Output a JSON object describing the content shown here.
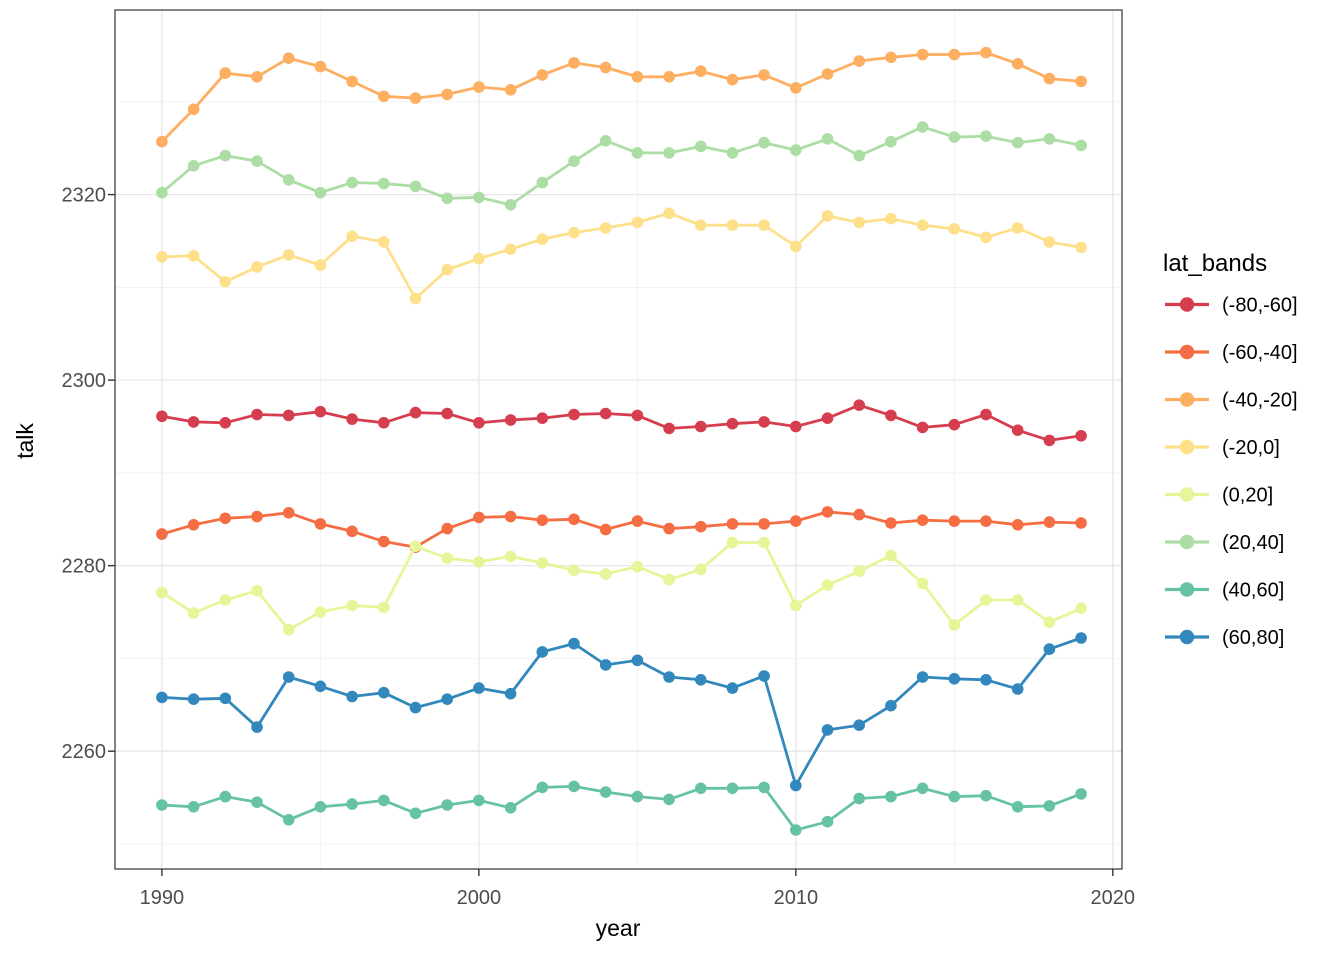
{
  "chart_data": {
    "type": "line",
    "title": "",
    "xlabel": "year",
    "ylabel": "talk",
    "grid": true,
    "legend": {
      "title": "lat_bands",
      "position": "right"
    },
    "x_ticks": [
      1990,
      2000,
      2010,
      2020
    ],
    "x_minor_ticks": [
      1995,
      2005,
      2015
    ],
    "y_ticks": [
      2260,
      2280,
      2300,
      2320
    ],
    "y_minor_ticks": [
      2250,
      2270,
      2290,
      2310,
      2330
    ],
    "x_range": [
      1988.52,
      2020.29
    ],
    "y_range": [
      2247.3,
      2339.9
    ],
    "x": [
      1990,
      1991,
      1992,
      1993,
      1994,
      1995,
      1996,
      1997,
      1998,
      1999,
      2000,
      2001,
      2002,
      2003,
      2004,
      2005,
      2006,
      2007,
      2008,
      2009,
      2010,
      2011,
      2012,
      2013,
      2014,
      2015,
      2016,
      2017,
      2018,
      2019
    ],
    "series": [
      {
        "name": "(-80,-60]",
        "color": "#d53e4f",
        "values": [
          2296.1,
          2295.5,
          2295.4,
          2296.3,
          2296.2,
          2296.6,
          2295.8,
          2295.4,
          2296.5,
          2296.4,
          2295.4,
          2295.7,
          2295.9,
          2296.3,
          2296.4,
          2296.2,
          2294.8,
          2295.0,
          2295.3,
          2295.5,
          2295.0,
          2295.9,
          2297.3,
          2296.2,
          2294.9,
          2295.2,
          2296.3,
          2294.6,
          2293.5,
          2294.0
        ]
      },
      {
        "name": "(-60,-40]",
        "color": "#f46d43",
        "values": [
          2283.4,
          2284.4,
          2285.1,
          2285.3,
          2285.7,
          2284.5,
          2283.7,
          2282.6,
          2282.0,
          2284.0,
          2285.2,
          2285.3,
          2284.9,
          2285.0,
          2283.9,
          2284.8,
          2284.0,
          2284.2,
          2284.5,
          2284.5,
          2284.8,
          2285.8,
          2285.5,
          2284.6,
          2284.9,
          2284.8,
          2284.8,
          2284.4,
          2284.7,
          2284.6
        ]
      },
      {
        "name": "(-40,-20]",
        "color": "#fdae61",
        "values": [
          2325.7,
          2329.2,
          2333.1,
          2332.7,
          2334.7,
          2333.8,
          2332.2,
          2330.6,
          2330.4,
          2330.8,
          2331.6,
          2331.3,
          2332.9,
          2334.2,
          2333.7,
          2332.7,
          2332.7,
          2333.3,
          2332.4,
          2332.9,
          2331.5,
          2333.0,
          2334.4,
          2334.8,
          2335.1,
          2335.1,
          2335.3,
          2334.1,
          2332.5,
          2332.2
        ]
      },
      {
        "name": "(-20,0]",
        "color": "#fee08b",
        "values": [
          2313.3,
          2313.4,
          2310.6,
          2312.2,
          2313.5,
          2312.4,
          2315.5,
          2314.9,
          2308.8,
          2311.9,
          2313.1,
          2314.1,
          2315.2,
          2315.9,
          2316.4,
          2317.0,
          2318.0,
          2316.7,
          2316.7,
          2316.7,
          2314.4,
          2317.7,
          2317.0,
          2317.4,
          2316.7,
          2316.3,
          2315.4,
          2316.4,
          2314.9,
          2314.3
        ]
      },
      {
        "name": "(0,20]",
        "color": "#e6f598",
        "values": [
          2277.1,
          2274.9,
          2276.3,
          2277.3,
          2273.1,
          2275.0,
          2275.7,
          2275.5,
          2282.1,
          2280.8,
          2280.4,
          2281.0,
          2280.3,
          2279.5,
          2279.1,
          2279.9,
          2278.5,
          2279.6,
          2282.5,
          2282.5,
          2275.7,
          2277.9,
          2279.4,
          2281.1,
          2278.1,
          2273.6,
          2276.3,
          2276.3,
          2273.9,
          2275.4
        ]
      },
      {
        "name": "(20,40]",
        "color": "#abdda4",
        "values": [
          2320.2,
          2323.1,
          2324.2,
          2323.6,
          2321.6,
          2320.2,
          2321.3,
          2321.2,
          2320.9,
          2319.6,
          2319.7,
          2318.9,
          2321.3,
          2323.6,
          2325.8,
          2324.5,
          2324.5,
          2325.2,
          2324.5,
          2325.6,
          2324.8,
          2326.0,
          2324.2,
          2325.7,
          2327.3,
          2326.2,
          2326.3,
          2325.6,
          2326.0,
          2325.3
        ]
      },
      {
        "name": "(40,60]",
        "color": "#66c2a5",
        "values": [
          2254.2,
          2254.0,
          2255.1,
          2254.5,
          2252.6,
          2254.0,
          2254.3,
          2254.7,
          2253.3,
          2254.2,
          2254.7,
          2253.9,
          2256.1,
          2256.2,
          2255.6,
          2255.1,
          2254.8,
          2256.0,
          2256.0,
          2256.1,
          2251.5,
          2252.4,
          2254.9,
          2255.1,
          2256.0,
          2255.1,
          2255.2,
          2254.0,
          2254.1,
          2255.4
        ]
      },
      {
        "name": "(60,80]",
        "color": "#3288bd",
        "values": [
          2265.8,
          2265.6,
          2265.7,
          2262.6,
          2268.0,
          2267.0,
          2265.9,
          2266.3,
          2264.7,
          2265.6,
          2266.8,
          2266.2,
          2270.7,
          2271.6,
          2269.3,
          2269.8,
          2268.0,
          2267.7,
          2266.8,
          2268.1,
          2256.3,
          2262.3,
          2262.8,
          2264.9,
          2268.0,
          2267.8,
          2267.7,
          2266.7,
          2271.0,
          2272.2
        ]
      }
    ],
    "style_colors": {
      "grid_major": "#e7e7e7",
      "grid_minor": "#efefef",
      "panel_border": "#333333",
      "tick_mark": "#333333",
      "tick_text": "#4d4d4d"
    }
  }
}
